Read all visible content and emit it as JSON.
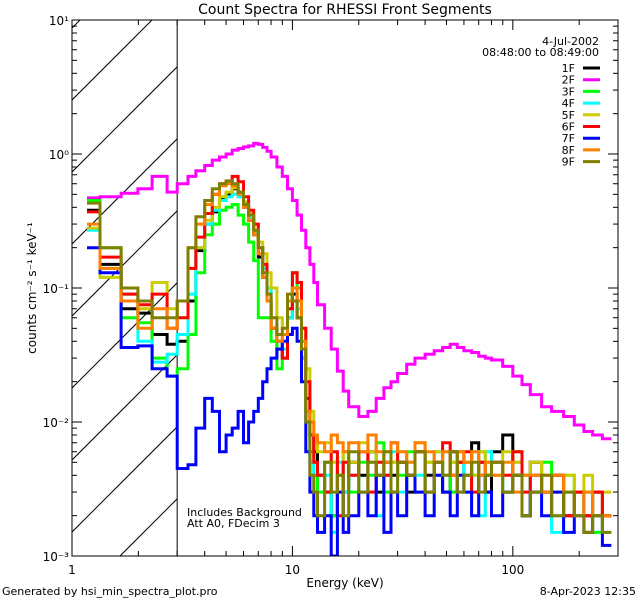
{
  "chart_data": {
    "type": "line",
    "title": "Count Spectra for RHESSI Front Segments",
    "xlabel": "Energy (keV)",
    "ylabel": "counts cm⁻² s⁻¹ keV⁻¹",
    "xscale": "log",
    "yscale": "log",
    "xlim": [
      1,
      300
    ],
    "ylim": [
      0.001,
      10
    ],
    "x_ticks": [
      1,
      10,
      100
    ],
    "x_tick_labels": [
      "1",
      "10",
      "100"
    ],
    "y_ticks": [
      0.001,
      0.01,
      0.1,
      1,
      10
    ],
    "y_tick_labels": [
      "10⁻³",
      "10⁻²",
      "10⁻¹",
      "10⁰",
      "10¹"
    ],
    "grid": false,
    "legend_position": "top-right",
    "legend_header": [
      "4-Jul-2002",
      "08:48:00 to 08:49:00"
    ],
    "annotations": [
      "Includes Background",
      "Att A0, FDecim 3"
    ],
    "excluded_region_keV": [
      1,
      3
    ],
    "footer_left": "Generated by hsi_min_spectra_plot.pro",
    "footer_right": "8-Apr-2023 12:35",
    "energy_edges": [
      1.17,
      1.34,
      1.67,
      1.99,
      2.31,
      2.7,
      3.0,
      3.36,
      3.65,
      4.0,
      4.33,
      4.67,
      5.0,
      5.33,
      5.67,
      6.0,
      6.33,
      6.67,
      7.0,
      7.33,
      7.67,
      8.0,
      8.5,
      9.0,
      9.5,
      10,
      10.5,
      11,
      11.5,
      12,
      12.5,
      13,
      14,
      15,
      16,
      17,
      18,
      20,
      22,
      24,
      26,
      28,
      30,
      33,
      36,
      40,
      44,
      48,
      52,
      56,
      60,
      65,
      70,
      75,
      80,
      90,
      100,
      110,
      120,
      135,
      150,
      170,
      190,
      210,
      230,
      255,
      280
    ],
    "series": [
      {
        "name": "1F",
        "color": "#000000",
        "values": [
          0.38,
          0.15,
          0.07,
          0.065,
          0.045,
          0.038,
          0.04,
          0.08,
          0.19,
          0.3,
          0.37,
          0.47,
          0.5,
          0.55,
          0.5,
          0.4,
          0.32,
          0.25,
          0.17,
          0.12,
          0.08,
          0.05,
          0.035,
          0.03,
          0.06,
          0.09,
          0.06,
          0.03,
          0.015,
          0.008,
          0.006,
          0.004,
          0.003,
          0.002,
          0.004,
          0.003,
          0.005,
          0.004,
          0.006,
          0.003,
          0.005,
          0.004,
          0.005,
          0.003,
          0.006,
          0.004,
          0.005,
          0.003,
          0.006,
          0.005,
          0.004,
          0.007,
          0.005,
          0.003,
          0.006,
          0.008,
          0.004,
          0.002,
          0.005,
          0.003,
          0.004,
          0.002,
          0.003,
          0.002,
          0.003,
          0.002
        ]
      },
      {
        "name": "2F",
        "color": "#ff00ff",
        "values": [
          0.47,
          0.48,
          0.51,
          0.55,
          0.68,
          0.52,
          0.6,
          0.68,
          0.75,
          0.82,
          0.9,
          0.95,
          1.0,
          1.07,
          1.1,
          1.13,
          1.15,
          1.2,
          1.18,
          1.12,
          1.05,
          0.95,
          0.8,
          0.68,
          0.55,
          0.45,
          0.35,
          0.27,
          0.2,
          0.15,
          0.11,
          0.075,
          0.05,
          0.035,
          0.024,
          0.017,
          0.013,
          0.011,
          0.012,
          0.015,
          0.018,
          0.02,
          0.023,
          0.027,
          0.03,
          0.032,
          0.034,
          0.036,
          0.038,
          0.036,
          0.034,
          0.033,
          0.031,
          0.03,
          0.029,
          0.026,
          0.022,
          0.019,
          0.016,
          0.013,
          0.012,
          0.011,
          0.0095,
          0.0085,
          0.008,
          0.0075
        ]
      },
      {
        "name": "3F",
        "color": "#00ff00",
        "values": [
          0.45,
          0.2,
          0.06,
          0.055,
          0.03,
          0.022,
          0.025,
          0.045,
          0.13,
          0.25,
          0.3,
          0.38,
          0.4,
          0.42,
          0.35,
          0.3,
          0.22,
          0.16,
          0.06,
          0.06,
          0.06,
          0.04,
          0.025,
          0.03,
          0.08,
          0.13,
          0.1,
          0.04,
          0.012,
          0.006,
          0.004,
          0.003,
          0.005,
          0.002,
          0.004,
          0.006,
          0.003,
          0.005,
          0.004,
          0.007,
          0.003,
          0.005,
          0.004,
          0.006,
          0.003,
          0.005,
          0.004,
          0.006,
          0.003,
          0.005,
          0.004,
          0.003,
          0.006,
          0.004,
          0.005,
          0.003,
          0.006,
          0.004,
          0.003,
          0.005,
          0.002,
          0.004,
          0.002,
          0.003,
          0.0015,
          0.002
        ]
      },
      {
        "name": "4F",
        "color": "#00ffff",
        "values": [
          0.27,
          0.14,
          0.09,
          0.04,
          0.028,
          0.032,
          0.045,
          0.09,
          0.2,
          0.3,
          0.38,
          0.45,
          0.48,
          0.5,
          0.48,
          0.42,
          0.33,
          0.26,
          0.2,
          0.14,
          0.1,
          0.06,
          0.04,
          0.035,
          0.06,
          0.08,
          0.07,
          0.03,
          0.01,
          0.005,
          0.003,
          0.002,
          0.004,
          0.0015,
          0.005,
          0.003,
          0.004,
          0.003,
          0.005,
          0.002,
          0.004,
          0.006,
          0.003,
          0.005,
          0.004,
          0.003,
          0.006,
          0.004,
          0.005,
          0.003,
          0.005,
          0.004,
          0.002,
          0.006,
          0.004,
          0.003,
          0.005,
          0.002,
          0.004,
          0.003,
          0.0015,
          0.003,
          0.002,
          0.003,
          0.002,
          0.0015
        ]
      },
      {
        "name": "5F",
        "color": "#cccc00",
        "values": [
          0.28,
          0.12,
          0.08,
          0.07,
          0.11,
          0.07,
          0.06,
          0.14,
          0.2,
          0.32,
          0.4,
          0.48,
          0.52,
          0.56,
          0.52,
          0.44,
          0.36,
          0.3,
          0.22,
          0.18,
          0.13,
          0.1,
          0.06,
          0.05,
          0.07,
          0.1,
          0.08,
          0.05,
          0.025,
          0.012,
          0.008,
          0.006,
          0.007,
          0.005,
          0.004,
          0.006,
          0.005,
          0.007,
          0.006,
          0.004,
          0.006,
          0.005,
          0.006,
          0.004,
          0.007,
          0.005,
          0.006,
          0.004,
          0.005,
          0.006,
          0.005,
          0.004,
          0.006,
          0.005,
          0.004,
          0.006,
          0.005,
          0.004,
          0.005,
          0.004,
          0.003,
          0.004,
          0.003,
          0.004,
          0.002,
          0.003
        ]
      },
      {
        "name": "6F",
        "color": "#ff0000",
        "values": [
          0.37,
          0.17,
          0.09,
          0.075,
          0.09,
          0.05,
          0.06,
          0.14,
          0.24,
          0.36,
          0.5,
          0.6,
          0.62,
          0.68,
          0.62,
          0.48,
          0.38,
          0.3,
          0.2,
          0.15,
          0.08,
          0.05,
          0.04,
          0.03,
          0.07,
          0.13,
          0.11,
          0.05,
          0.02,
          0.008,
          0.005,
          0.004,
          0.003,
          0.006,
          0.002,
          0.005,
          0.004,
          0.006,
          0.003,
          0.005,
          0.004,
          0.007,
          0.005,
          0.004,
          0.006,
          0.003,
          0.005,
          0.007,
          0.004,
          0.005,
          0.006,
          0.003,
          0.005,
          0.004,
          0.005,
          0.004,
          0.006,
          0.003,
          0.004,
          0.003,
          0.004,
          0.002,
          0.003,
          0.002,
          0.003,
          0.002
        ]
      },
      {
        "name": "7F",
        "color": "#0000ff",
        "values": [
          0.2,
          0.13,
          0.036,
          0.037,
          0.025,
          0.022,
          0.0045,
          0.0048,
          0.009,
          0.015,
          0.012,
          0.006,
          0.008,
          0.009,
          0.012,
          0.007,
          0.01,
          0.012,
          0.015,
          0.02,
          0.025,
          0.03,
          0.035,
          0.04,
          0.045,
          0.05,
          0.04,
          0.02,
          0.006,
          0.003,
          0.002,
          0.0015,
          0.002,
          0.001,
          0.003,
          0.0015,
          0.002,
          0.003,
          0.002,
          0.004,
          0.0015,
          0.003,
          0.002,
          0.004,
          0.003,
          0.002,
          0.004,
          0.003,
          0.002,
          0.004,
          0.003,
          0.002,
          0.004,
          0.003,
          0.002,
          0.003,
          0.004,
          0.002,
          0.003,
          0.002,
          0.003,
          0.0015,
          0.002,
          0.0015,
          0.002,
          0.0012
        ]
      },
      {
        "name": "8F",
        "color": "#ff8000",
        "values": [
          0.3,
          0.14,
          0.08,
          0.05,
          0.07,
          0.05,
          0.08,
          0.2,
          0.3,
          0.42,
          0.5,
          0.58,
          0.6,
          0.58,
          0.5,
          0.4,
          0.32,
          0.25,
          0.18,
          0.12,
          0.08,
          0.05,
          0.04,
          0.045,
          0.08,
          0.1,
          0.08,
          0.04,
          0.012,
          0.01,
          0.008,
          0.007,
          0.006,
          0.008,
          0.007,
          0.006,
          0.007,
          0.006,
          0.008,
          0.006,
          0.005,
          0.007,
          0.006,
          0.005,
          0.007,
          0.006,
          0.005,
          0.006,
          0.004,
          0.006,
          0.005,
          0.006,
          0.004,
          0.005,
          0.004,
          0.005,
          0.003,
          0.004,
          0.004,
          0.003,
          0.004,
          0.003,
          0.002,
          0.003,
          0.002,
          0.002
        ]
      },
      {
        "name": "9F",
        "color": "#808000",
        "values": [
          0.43,
          0.2,
          0.1,
          0.08,
          0.06,
          0.06,
          0.08,
          0.2,
          0.34,
          0.45,
          0.55,
          0.6,
          0.63,
          0.6,
          0.52,
          0.42,
          0.35,
          0.27,
          0.2,
          0.13,
          0.09,
          0.06,
          0.045,
          0.05,
          0.09,
          0.08,
          0.06,
          0.035,
          0.01,
          0.004,
          0.003,
          0.002,
          0.005,
          0.003,
          0.004,
          0.002,
          0.006,
          0.003,
          0.005,
          0.004,
          0.006,
          0.003,
          0.005,
          0.004,
          0.006,
          0.003,
          0.005,
          0.004,
          0.006,
          0.003,
          0.004,
          0.005,
          0.003,
          0.004,
          0.005,
          0.003,
          0.004,
          0.002,
          0.003,
          0.004,
          0.002,
          0.003,
          0.002,
          0.0015,
          0.002,
          0.0015
        ]
      }
    ]
  }
}
